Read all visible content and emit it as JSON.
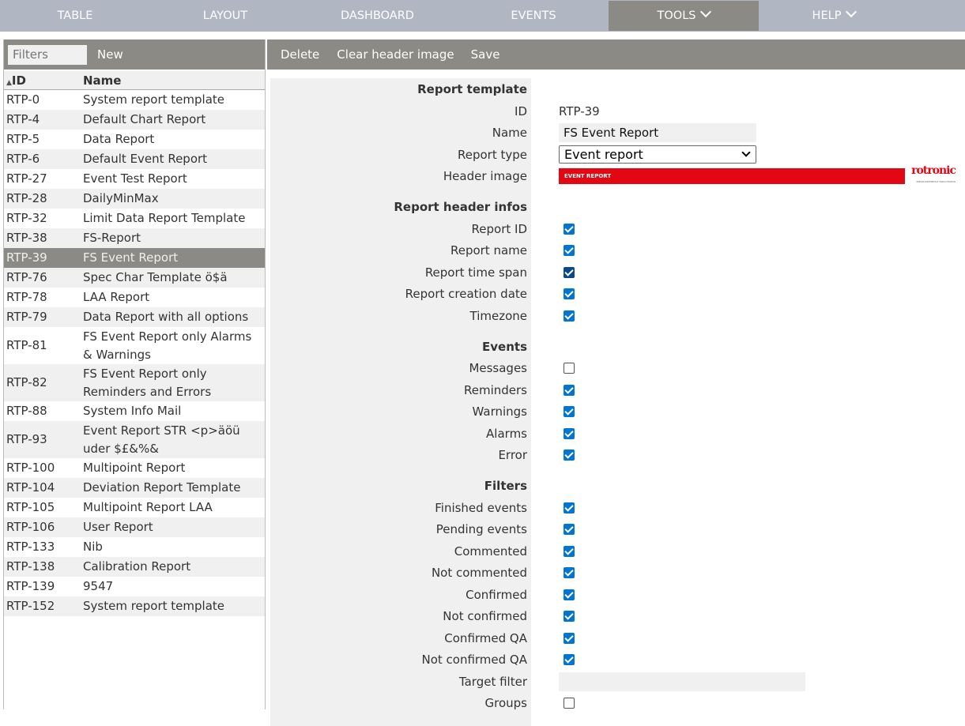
{
  "nav": {
    "items": [
      "TABLE",
      "LAYOUT",
      "DASHBOARD",
      "EVENTS",
      "TOOLS",
      "HELP"
    ],
    "active": "TOOLS"
  },
  "left": {
    "filter_placeholder": "Filters",
    "new_label": "New",
    "col_id": "ID",
    "col_name": "Name",
    "sort_icon": "triangle-up",
    "rows": [
      [
        "RTP-0",
        "System report template"
      ],
      [
        "RTP-4",
        "Default Chart Report"
      ],
      [
        "RTP-5",
        "Data Report"
      ],
      [
        "RTP-6",
        "Default Event Report"
      ],
      [
        "RTP-27",
        "Event Test Report"
      ],
      [
        "RTP-28",
        "DailyMinMax"
      ],
      [
        "RTP-32",
        "Limit Data Report Template"
      ],
      [
        "RTP-38",
        "FS-Report"
      ],
      [
        "RTP-39",
        "FS Event Report"
      ],
      [
        "RTP-76",
        "Spec Char Template ö$ä"
      ],
      [
        "RTP-78",
        "LAA Report"
      ],
      [
        "RTP-79",
        "Data Report with all options"
      ],
      [
        "RTP-81",
        "FS Event Report only Alarms & Warnings"
      ],
      [
        "RTP-82",
        "FS Event Report only Reminders and Errors"
      ],
      [
        "RTP-88",
        "System Info Mail"
      ],
      [
        "RTP-93",
        "Event Report STR <p>äöü uder $£&%&"
      ],
      [
        "RTP-100",
        "Multipoint Report"
      ],
      [
        "RTP-104",
        "Deviation Report Template"
      ],
      [
        "RTP-105",
        "Multipoint Report LAA"
      ],
      [
        "RTP-106",
        "User Report"
      ],
      [
        "RTP-133",
        "Nib"
      ],
      [
        "RTP-138",
        "Calibration Report"
      ],
      [
        "RTP-139",
        "9547"
      ],
      [
        "RTP-152",
        "System report template"
      ]
    ],
    "selected": "RTP-39"
  },
  "toolbar": {
    "delete": "Delete",
    "clear_header": "Clear header image",
    "save": "Save"
  },
  "form": {
    "sec_template": "Report template",
    "id_label": "ID",
    "id_value": "RTP-39",
    "name_label": "Name",
    "name_value": "FS Event Report",
    "type_label": "Report type",
    "type_value": "Event report",
    "header_label": "Header image",
    "header_text": "EVENT REPORT",
    "logo_text": "rotronic",
    "logo_sub": "MEASUREMENT SOLUTIONS",
    "sec_header": "Report header infos",
    "header_infos": [
      {
        "label": "Report ID",
        "checked": true
      },
      {
        "label": "Report name",
        "checked": true
      },
      {
        "label": "Report time span",
        "checked": true
      },
      {
        "label": "Report creation date",
        "checked": true
      },
      {
        "label": "Timezone",
        "checked": true
      }
    ],
    "sec_events": "Events",
    "events": [
      {
        "label": "Messages",
        "checked": false
      },
      {
        "label": "Reminders",
        "checked": true
      },
      {
        "label": "Warnings",
        "checked": true
      },
      {
        "label": "Alarms",
        "checked": true
      },
      {
        "label": "Error",
        "checked": true
      }
    ],
    "sec_filters": "Filters",
    "filters": [
      {
        "label": "Finished events",
        "checked": true
      },
      {
        "label": "Pending events",
        "checked": true
      },
      {
        "label": "Commented",
        "checked": true
      },
      {
        "label": "Not commented",
        "checked": true
      },
      {
        "label": "Confirmed",
        "checked": true
      },
      {
        "label": "Not confirmed",
        "checked": true
      },
      {
        "label": "Confirmed QA",
        "checked": true
      },
      {
        "label": "Not confirmed QA",
        "checked": true
      }
    ],
    "target_label": "Target filter",
    "target_value": "",
    "groups_label": "Groups",
    "groups_checked": false
  },
  "colors": {
    "nav": "#b0b7c3",
    "toolbar": "#8b8a84",
    "checkbox": "#0075d5",
    "brand_red": "#e30613"
  }
}
